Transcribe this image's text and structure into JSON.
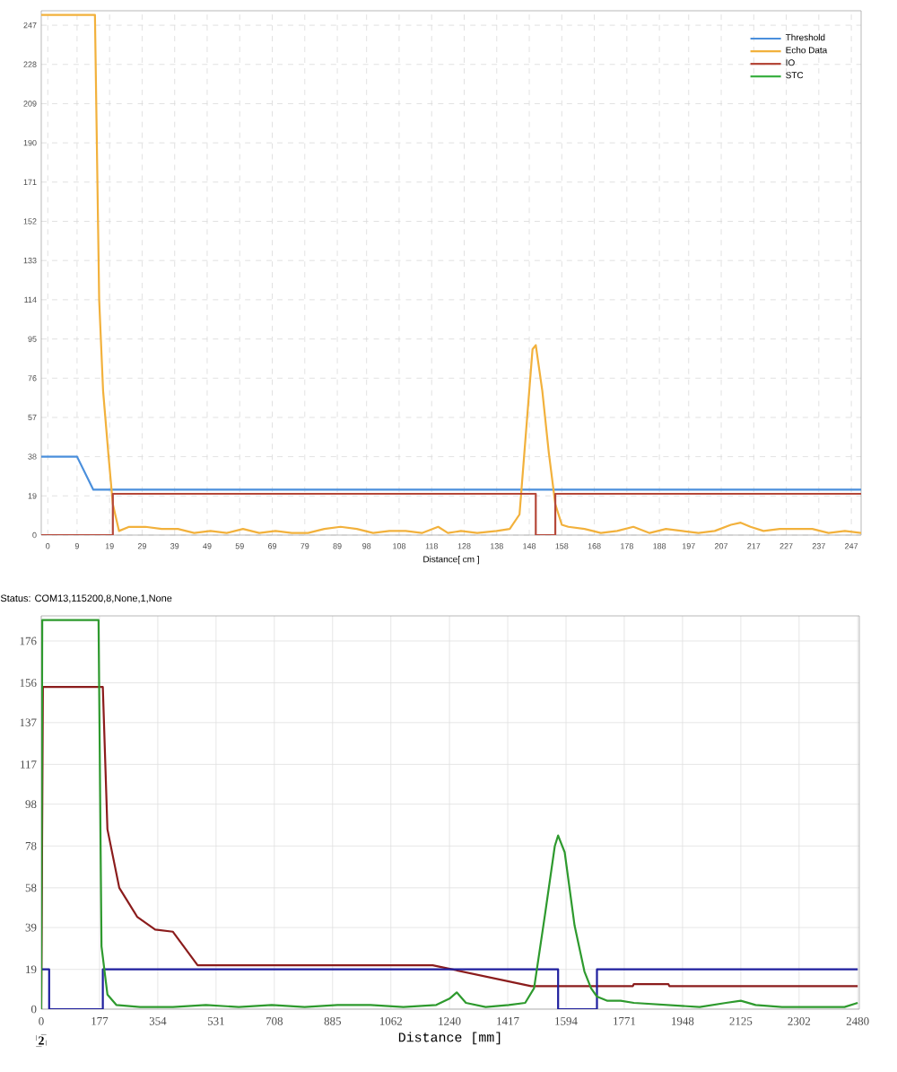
{
  "chart_data": [
    {
      "type": "line",
      "xlabel": "Distance[ cm ]",
      "xlim": [
        -2,
        250
      ],
      "ylim": [
        0,
        254
      ],
      "xticks": [
        0,
        9,
        19,
        29,
        39,
        49,
        59,
        69,
        79,
        89,
        98,
        108,
        118,
        128,
        138,
        148,
        158,
        168,
        178,
        188,
        197,
        207,
        217,
        227,
        237,
        247
      ],
      "yticks": [
        0,
        19,
        38,
        57,
        76,
        95,
        114,
        133,
        152,
        171,
        190,
        209,
        228,
        247
      ],
      "grid": true,
      "legend": "top right",
      "annotations": [
        "Status: COM13,115200,8,None,1,None"
      ],
      "series": [
        {
          "name": "Threshold",
          "color": "#4a8fdc",
          "x": [
            -2,
            9,
            14,
            250
          ],
          "values": [
            38,
            38,
            22,
            22
          ]
        },
        {
          "name": "Echo Data",
          "color": "#f2b13c",
          "x": [
            -2,
            14.5,
            15.8,
            17,
            18.7,
            20,
            21.9,
            25,
            30,
            35,
            40,
            45,
            50,
            55,
            60,
            65,
            70,
            75,
            80,
            85,
            90,
            95,
            100,
            105,
            110,
            115,
            120,
            123,
            127,
            132,
            138,
            142,
            145,
            147,
            149,
            150,
            152,
            154,
            156,
            158,
            160,
            165,
            170,
            175,
            180,
            185,
            190,
            195,
            200,
            205,
            210,
            213,
            216,
            220,
            225,
            230,
            235,
            240,
            245,
            250
          ],
          "values": [
            252,
            252,
            114,
            70,
            38,
            15,
            2,
            4,
            4,
            3,
            3,
            1,
            2,
            1,
            3,
            1,
            2,
            1,
            1,
            3,
            4,
            3,
            1,
            2,
            2,
            1,
            4,
            1,
            2,
            1,
            2,
            3,
            10,
            50,
            90,
            92,
            70,
            40,
            15,
            5,
            4,
            3,
            1,
            2,
            4,
            1,
            3,
            2,
            1,
            2,
            5,
            6,
            4,
            2,
            3,
            3,
            3,
            1,
            2,
            1
          ]
        },
        {
          "name": "IO",
          "color": "#b5483a",
          "x": [
            -2,
            20,
            20,
            150,
            150,
            156,
            156,
            250
          ],
          "values": [
            0,
            0,
            20,
            20,
            0,
            0,
            20,
            20
          ]
        },
        {
          "name": "STC",
          "color": "#3cb043"
        }
      ]
    },
    {
      "type": "line",
      "xlabel": "Distance [mm]",
      "xlim": [
        0,
        2485
      ],
      "ylim": [
        0,
        188
      ],
      "xticks": [
        0,
        177,
        354,
        531,
        708,
        885,
        1062,
        1240,
        1417,
        1594,
        1771,
        1948,
        2125,
        2302,
        2480
      ],
      "yticks": [
        0,
        19,
        39,
        58,
        78,
        98,
        117,
        137,
        156,
        176
      ],
      "grid": true,
      "annotations": [
        "2"
      ],
      "series": [
        {
          "color": "#8b1c1c",
          "x": [
            0,
            5,
            187,
            201,
            237,
            292,
            346,
            400,
            475,
            1189,
            1488,
            1797,
            1800,
            1905,
            1908,
            2480
          ],
          "values": [
            0,
            154,
            154,
            86,
            58,
            44,
            38,
            37,
            21,
            21,
            11,
            11,
            12,
            12,
            11,
            11
          ]
        },
        {
          "color": "#1f1f9e",
          "x": [
            0,
            24,
            24,
            187,
            187,
            1570,
            1570,
            1688,
            1688,
            2480
          ],
          "values": [
            19,
            19,
            0,
            0,
            19,
            19,
            0,
            0,
            19,
            19
          ]
        },
        {
          "color": "#2e9a2e",
          "x": [
            0,
            3,
            174,
            183,
            201,
            228,
            300,
            400,
            500,
            600,
            700,
            800,
            900,
            1000,
            1100,
            1200,
            1240,
            1262,
            1290,
            1350,
            1420,
            1470,
            1497,
            1530,
            1560,
            1570,
            1590,
            1620,
            1650,
            1670,
            1688,
            1720,
            1760,
            1800,
            1900,
            2000,
            2080,
            2125,
            2170,
            2250,
            2350,
            2440,
            2480
          ],
          "values": [
            0,
            186,
            186,
            30,
            7,
            2,
            1,
            1,
            2,
            1,
            2,
            1,
            2,
            2,
            1,
            2,
            5,
            8,
            3,
            1,
            2,
            3,
            10,
            45,
            78,
            83,
            75,
            40,
            18,
            10,
            6,
            4,
            4,
            3,
            2,
            1,
            3,
            4,
            2,
            1,
            1,
            1,
            3
          ]
        }
      ]
    }
  ]
}
